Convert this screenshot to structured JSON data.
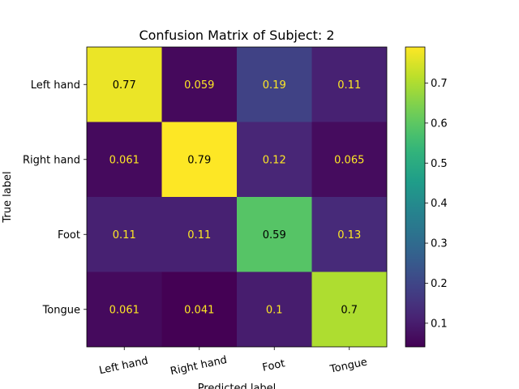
{
  "chart_data": {
    "type": "heatmap",
    "title": "Confusion Matrix of Subject: 2",
    "xlabel": "Predicted label",
    "ylabel": "True label",
    "x_categories": [
      "Left hand",
      "Right hand",
      "Foot",
      "Tongue"
    ],
    "y_categories": [
      "Left hand",
      "Right hand",
      "Foot",
      "Tongue"
    ],
    "values": [
      [
        0.77,
        0.059,
        0.19,
        0.11
      ],
      [
        0.061,
        0.79,
        0.12,
        0.065
      ],
      [
        0.11,
        0.11,
        0.59,
        0.13
      ],
      [
        0.061,
        0.041,
        0.1,
        0.7
      ]
    ],
    "value_labels": [
      [
        "0.77",
        "0.059",
        "0.19",
        "0.11"
      ],
      [
        "0.061",
        "0.79",
        "0.12",
        "0.065"
      ],
      [
        "0.11",
        "0.11",
        "0.59",
        "0.13"
      ],
      [
        "0.061",
        "0.041",
        "0.1",
        "0.7"
      ]
    ],
    "colormap": "viridis",
    "colorbar": {
      "range": [
        0.041,
        0.79
      ],
      "ticks": [
        0.1,
        0.2,
        0.3,
        0.4,
        0.5,
        0.6,
        0.7
      ],
      "tick_labels": [
        "0.1",
        "0.2",
        "0.3",
        "0.4",
        "0.5",
        "0.6",
        "0.7"
      ]
    },
    "text_color_dark": "#000000",
    "text_color_light": "#fde725"
  }
}
